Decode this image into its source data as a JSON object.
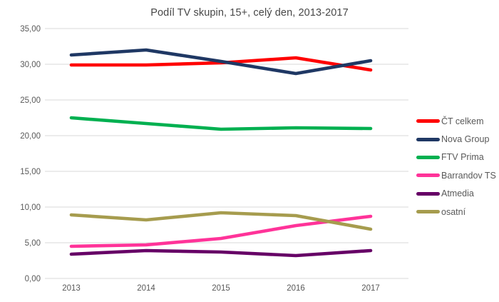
{
  "chart_data": {
    "type": "line",
    "title": "Podíl TV skupin, 15+, celý den, 2013-2017",
    "categories": [
      "2013",
      "2014",
      "2015",
      "2016",
      "2017"
    ],
    "series": [
      {
        "name": "ČT celkem",
        "color": "#FF0000",
        "values": [
          29.9,
          29.9,
          30.2,
          30.9,
          29.2
        ]
      },
      {
        "name": "Nova Group",
        "color": "#1F3864",
        "values": [
          31.3,
          32.0,
          30.4,
          28.7,
          30.5
        ]
      },
      {
        "name": "FTV Prima",
        "color": "#00B050",
        "values": [
          22.5,
          21.7,
          20.9,
          21.1,
          21.0
        ]
      },
      {
        "name": "Barrandov TS",
        "color": "#FF3399",
        "values": [
          4.5,
          4.7,
          5.6,
          7.4,
          8.7
        ]
      },
      {
        "name": "Atmedia",
        "color": "#660066",
        "values": [
          3.4,
          3.9,
          3.7,
          3.2,
          3.9
        ]
      },
      {
        "name": "osatní",
        "color": "#A69C4E",
        "values": [
          8.9,
          8.2,
          9.2,
          8.8,
          6.9
        ]
      }
    ],
    "ylim": [
      0,
      35
    ],
    "y_tick_step": 5,
    "y_tick_labels": [
      "0,00",
      "5,00",
      "10,00",
      "15,00",
      "20,00",
      "25,00",
      "30,00",
      "35,00"
    ],
    "grid": true,
    "gridline_color": "#D9D9D9",
    "legend_position": "right",
    "xlabel": "",
    "ylabel": ""
  }
}
